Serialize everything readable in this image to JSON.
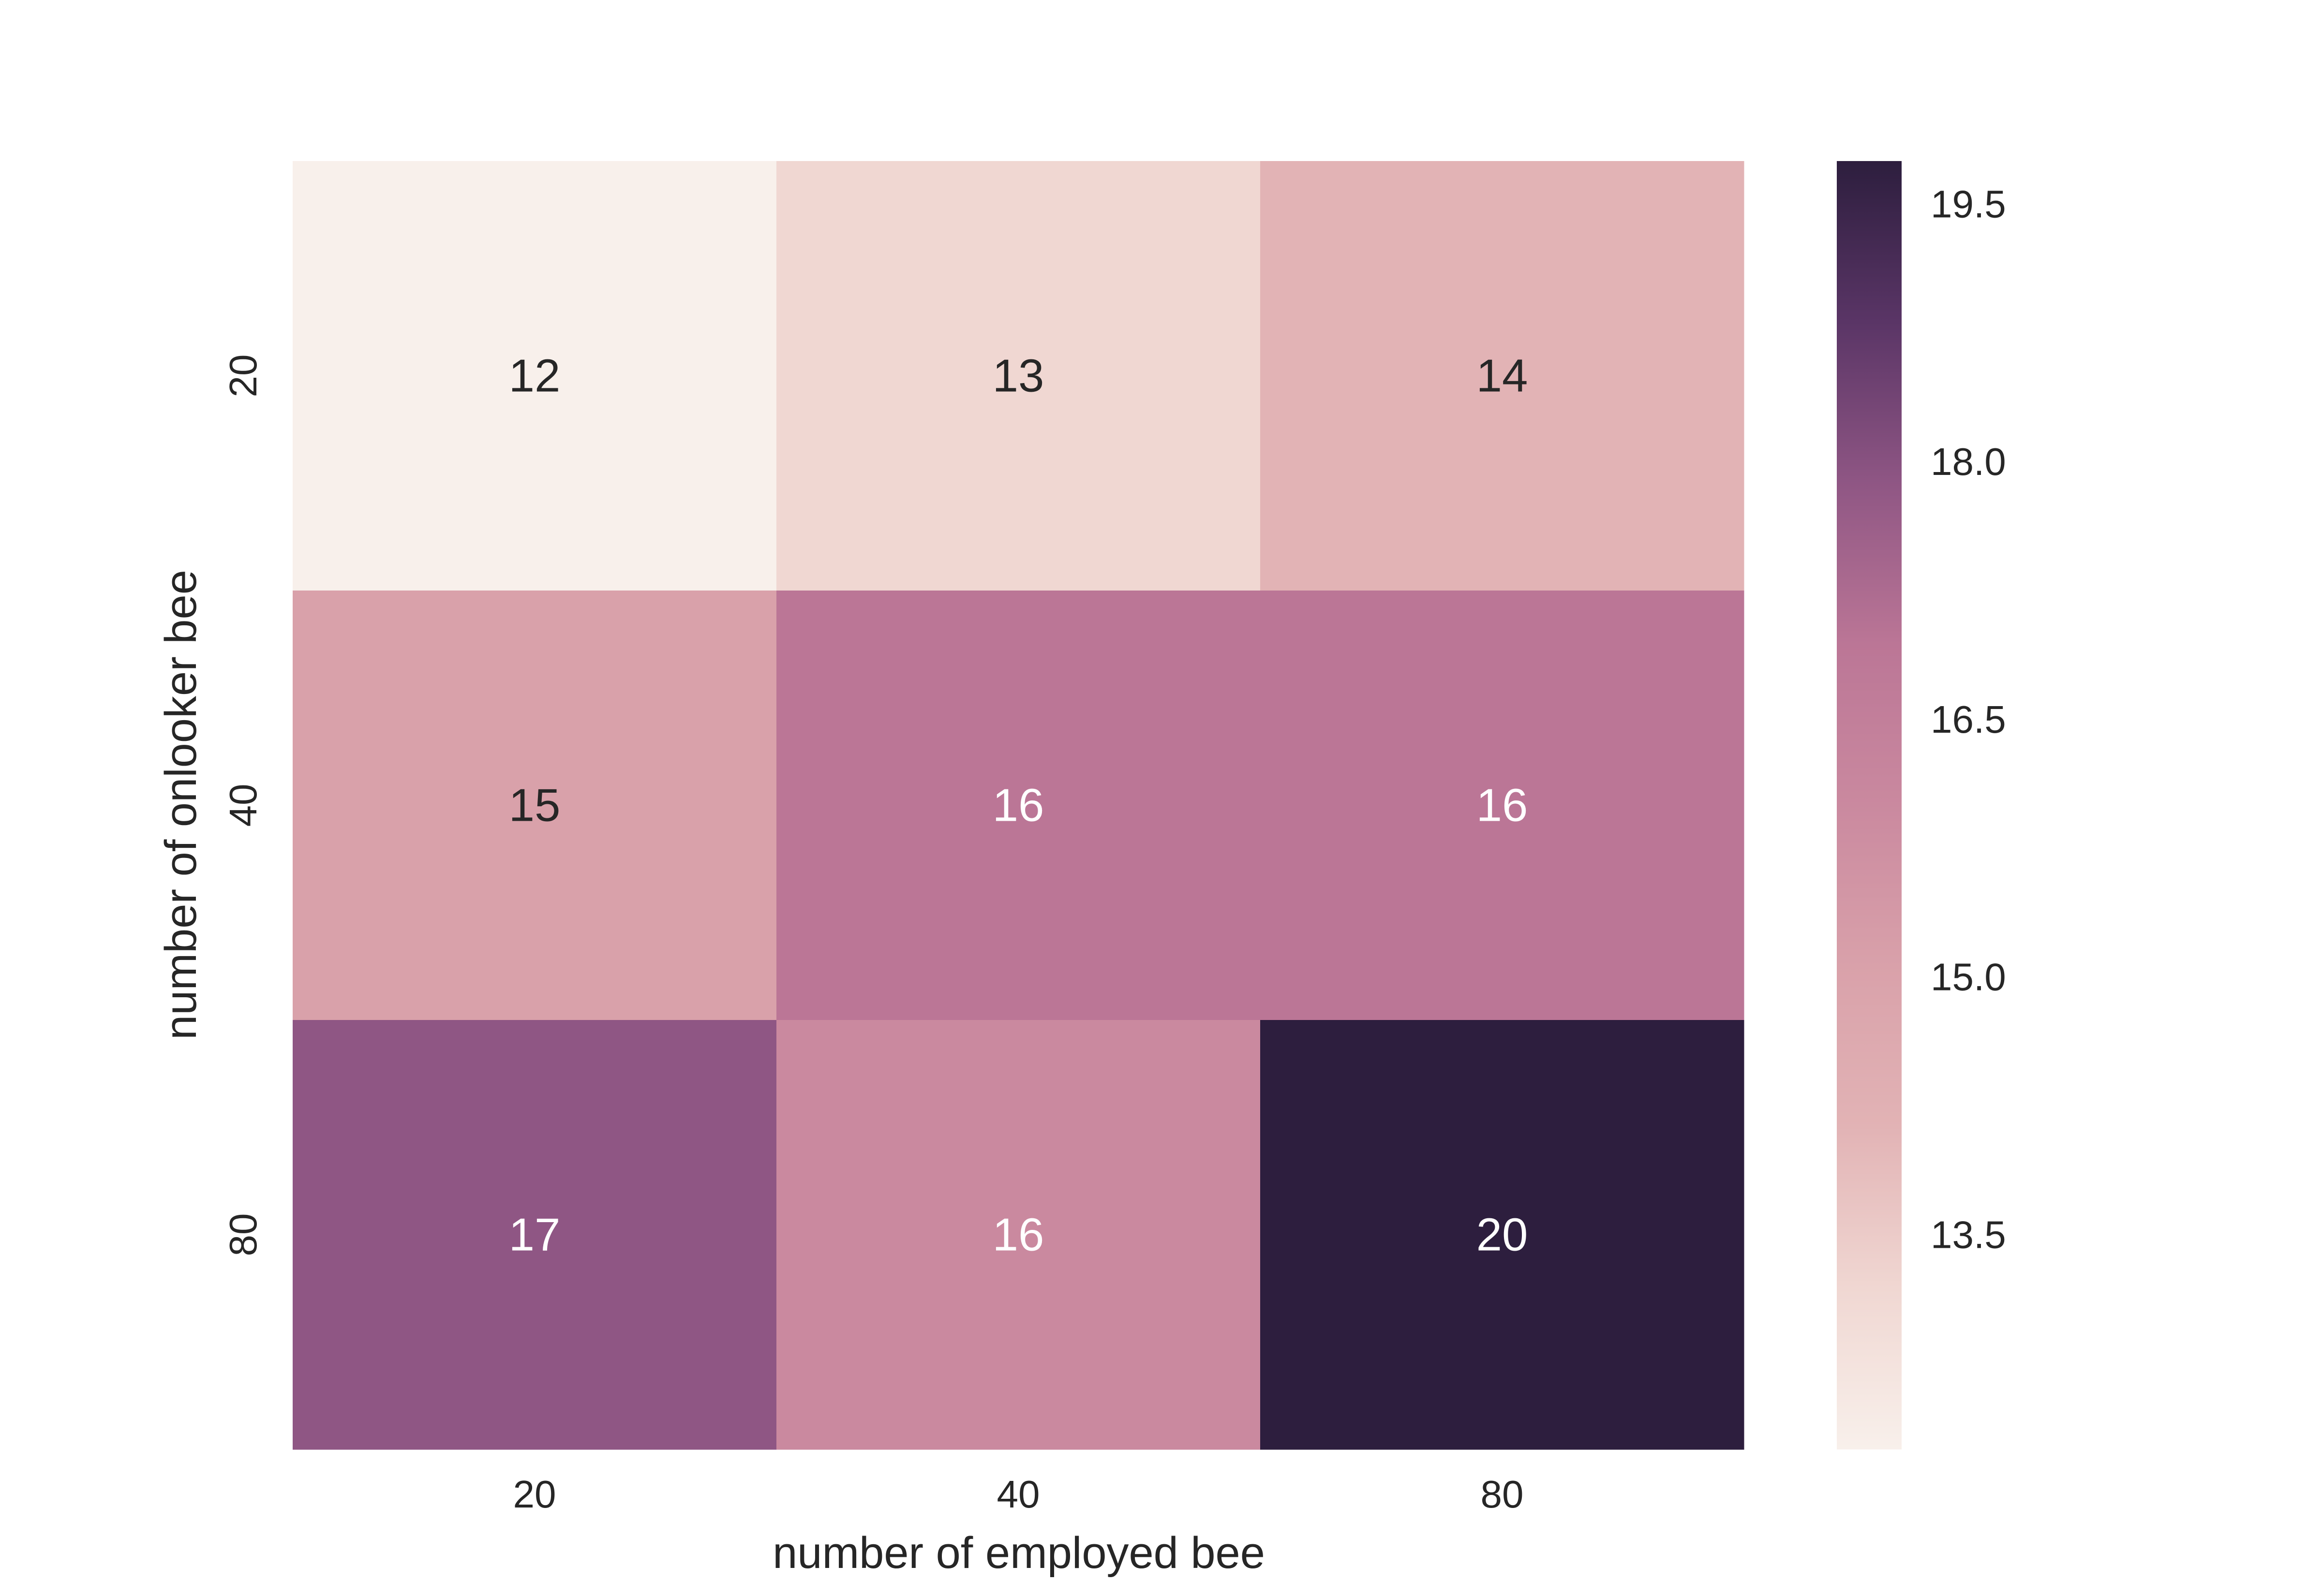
{
  "chart_data": {
    "type": "heatmap",
    "title": "",
    "xlabel": "number of employed bee",
    "ylabel": "number of onlooker bee",
    "x_categories": [
      "20",
      "40",
      "80"
    ],
    "y_categories": [
      "20",
      "40",
      "80"
    ],
    "values": [
      [
        12,
        13,
        14
      ],
      [
        15,
        16,
        16
      ],
      [
        17,
        16,
        20
      ]
    ],
    "cell_colors": [
      [
        "#f8f0eb",
        "#f0d7d2",
        "#e2b3b5"
      ],
      [
        "#d9a1aa",
        "#bb7696",
        "#bb7696"
      ],
      [
        "#8f5684",
        "#ca899f",
        "#2d1e3e"
      ]
    ],
    "annotation_colors": [
      [
        "#262626",
        "#262626",
        "#262626"
      ],
      [
        "#262626",
        "#ffffff",
        "#ffffff"
      ],
      [
        "#ffffff",
        "#ffffff",
        "#ffffff"
      ]
    ],
    "colorbar": {
      "range": [
        12.25,
        19.75
      ],
      "ticks": [
        13.5,
        15.0,
        16.5,
        18.0,
        19.5
      ],
      "tick_labels": [
        "13.5",
        "15.0",
        "16.5",
        "18.0",
        "19.5"
      ],
      "stops": [
        "#f8f0eb",
        "#f0d7d2",
        "#e2b3b5",
        "#d9a1aa",
        "#ca899f",
        "#bb7696",
        "#8f5684",
        "#5a3566",
        "#2d1e3e"
      ]
    },
    "grid": false,
    "legend": "none"
  }
}
